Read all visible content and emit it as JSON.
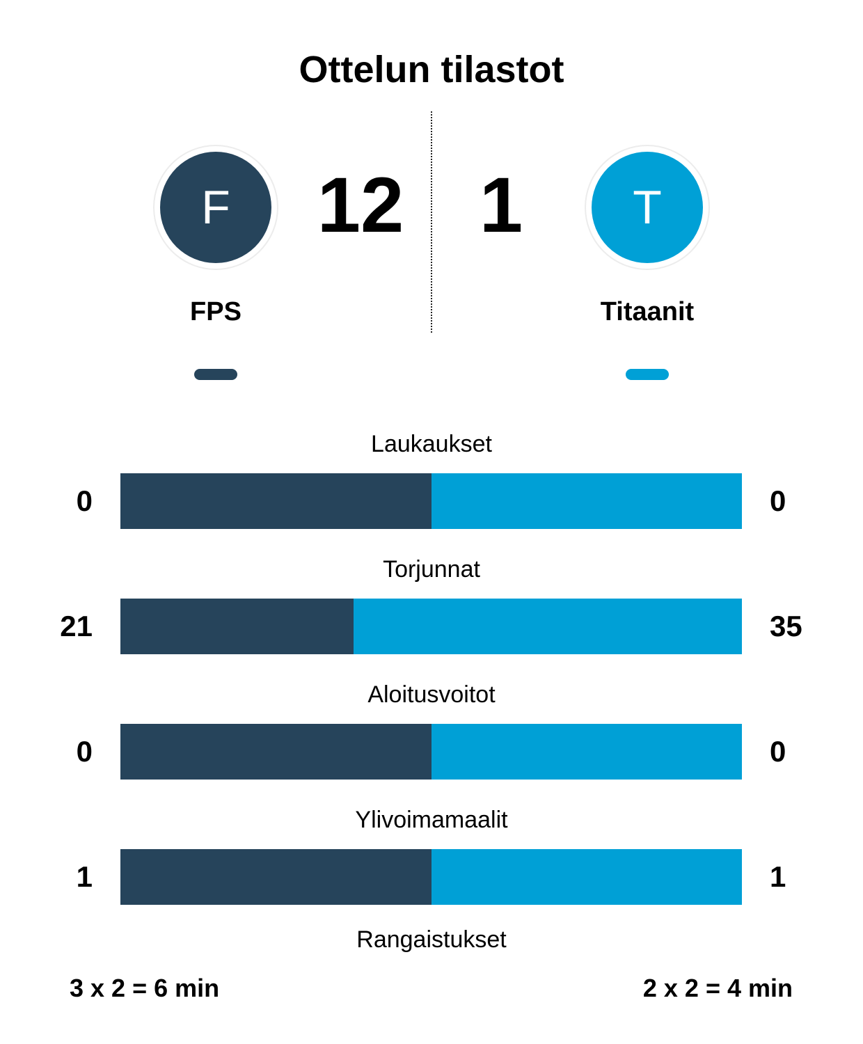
{
  "title": "Ottelun tilastot",
  "colors": {
    "home": "#26445b",
    "away": "#00a0d6"
  },
  "home": {
    "initial": "F",
    "name": "FPS",
    "score": "12"
  },
  "away": {
    "initial": "T",
    "name": "Titaanit",
    "score": "1"
  },
  "chart_data": {
    "type": "bar",
    "categories": [
      "Laukaukset",
      "Torjunnat",
      "Aloitusvoitot",
      "Ylivoimamaalit"
    ],
    "series": [
      {
        "name": "FPS",
        "values": [
          0,
          21,
          0,
          1
        ]
      },
      {
        "name": "Titaanit",
        "values": [
          0,
          35,
          0,
          1
        ]
      }
    ]
  },
  "penalties": {
    "label": "Rangaistukset",
    "home": "3 x 2 = 6 min",
    "away": "2 x 2 = 4 min"
  }
}
